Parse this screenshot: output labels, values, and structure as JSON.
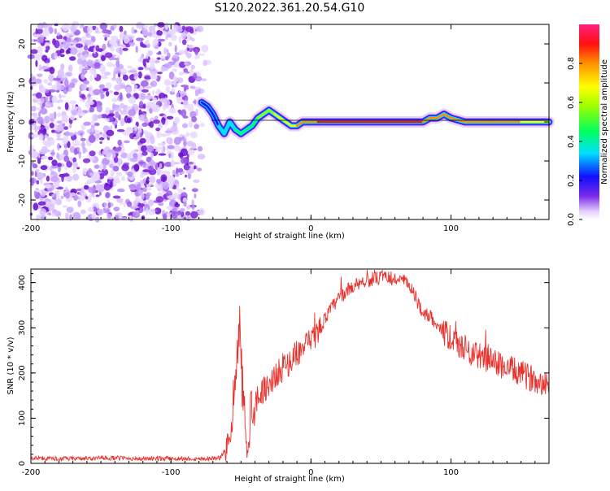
{
  "title": "S120.2022.361.20.54.G10",
  "chart_data": [
    {
      "type": "heatmap",
      "xlabel": "Height of straight line (km)",
      "ylabel": "Frequency (Hz)",
      "xlim": [
        -200,
        170
      ],
      "ylim": [
        -25,
        25
      ],
      "xticks": [
        -200,
        -100,
        0,
        100
      ],
      "yticks": [
        20,
        10,
        0,
        -10,
        -20
      ],
      "colorbar": {
        "label": "Normalized spectral amplitude",
        "ticks": [
          0.0,
          0.2,
          0.4,
          0.6,
          0.8
        ],
        "range": [
          0,
          1
        ]
      },
      "noise_region": {
        "x_from": -200,
        "x_to": -72
      },
      "trace": {
        "x": [
          -78,
          -74,
          -70,
          -66,
          -62,
          -58,
          -54,
          -50,
          -46,
          -42,
          -38,
          -34,
          -30,
          -26,
          -22,
          -18,
          -14,
          -10,
          -6,
          -2,
          5,
          15,
          25,
          40,
          55,
          70,
          80,
          85,
          90,
          95,
          100,
          110,
          130,
          150,
          170
        ],
        "y": [
          5,
          4,
          2,
          -1,
          -3,
          0,
          -2,
          -3,
          -2,
          -1,
          1,
          2,
          3,
          2,
          1,
          0,
          -1,
          -1,
          0,
          0,
          0,
          0,
          0,
          0,
          0,
          0,
          0,
          1,
          1,
          2,
          1,
          0,
          0,
          0,
          0
        ],
        "amplitude": [
          0.15,
          0.2,
          0.25,
          0.3,
          0.35,
          0.4,
          0.45,
          0.5,
          0.55,
          0.6,
          0.6,
          0.65,
          0.7,
          0.7,
          0.75,
          0.75,
          0.8,
          0.8,
          0.85,
          0.85,
          0.9,
          0.95,
          0.95,
          1.0,
          1.0,
          0.95,
          0.9,
          0.9,
          0.85,
          0.85,
          0.9,
          0.9,
          0.85,
          0.8,
          0.8
        ]
      }
    },
    {
      "type": "line",
      "xlabel": "Height of straight line (km)",
      "ylabel": "SNR (10 * v/v)",
      "xlim": [
        -200,
        170
      ],
      "ylim": [
        0,
        430
      ],
      "xticks": [
        -200,
        -100,
        0,
        100
      ],
      "yticks": [
        0,
        100,
        200,
        300,
        400
      ],
      "color": "#e8322d",
      "series": [
        {
          "x": [
            -200,
            -180,
            -160,
            -140,
            -120,
            -100,
            -80,
            -65,
            -60,
            -56,
            -53,
            -51,
            -49,
            -47,
            -45,
            -43,
            -40,
            -35,
            -30,
            -25,
            -20,
            -15,
            -10,
            -5,
            0,
            5,
            10,
            15,
            20,
            25,
            30,
            35,
            40,
            45,
            50,
            55,
            60,
            65,
            70,
            75,
            80,
            85,
            90,
            95,
            100,
            105,
            110,
            115,
            120,
            125,
            130,
            135,
            140,
            145,
            150,
            155,
            160,
            165,
            170
          ],
          "y": [
            12,
            10,
            11,
            12,
            10,
            11,
            10,
            12,
            35,
            90,
            220,
            300,
            170,
            100,
            40,
            120,
            140,
            160,
            175,
            195,
            210,
            225,
            245,
            255,
            270,
            290,
            320,
            345,
            365,
            380,
            392,
            400,
            405,
            408,
            410,
            410,
            408,
            405,
            395,
            365,
            335,
            325,
            310,
            290,
            275,
            262,
            255,
            245,
            238,
            232,
            225,
            218,
            212,
            205,
            198,
            192,
            186,
            182,
            178
          ]
        }
      ]
    }
  ]
}
